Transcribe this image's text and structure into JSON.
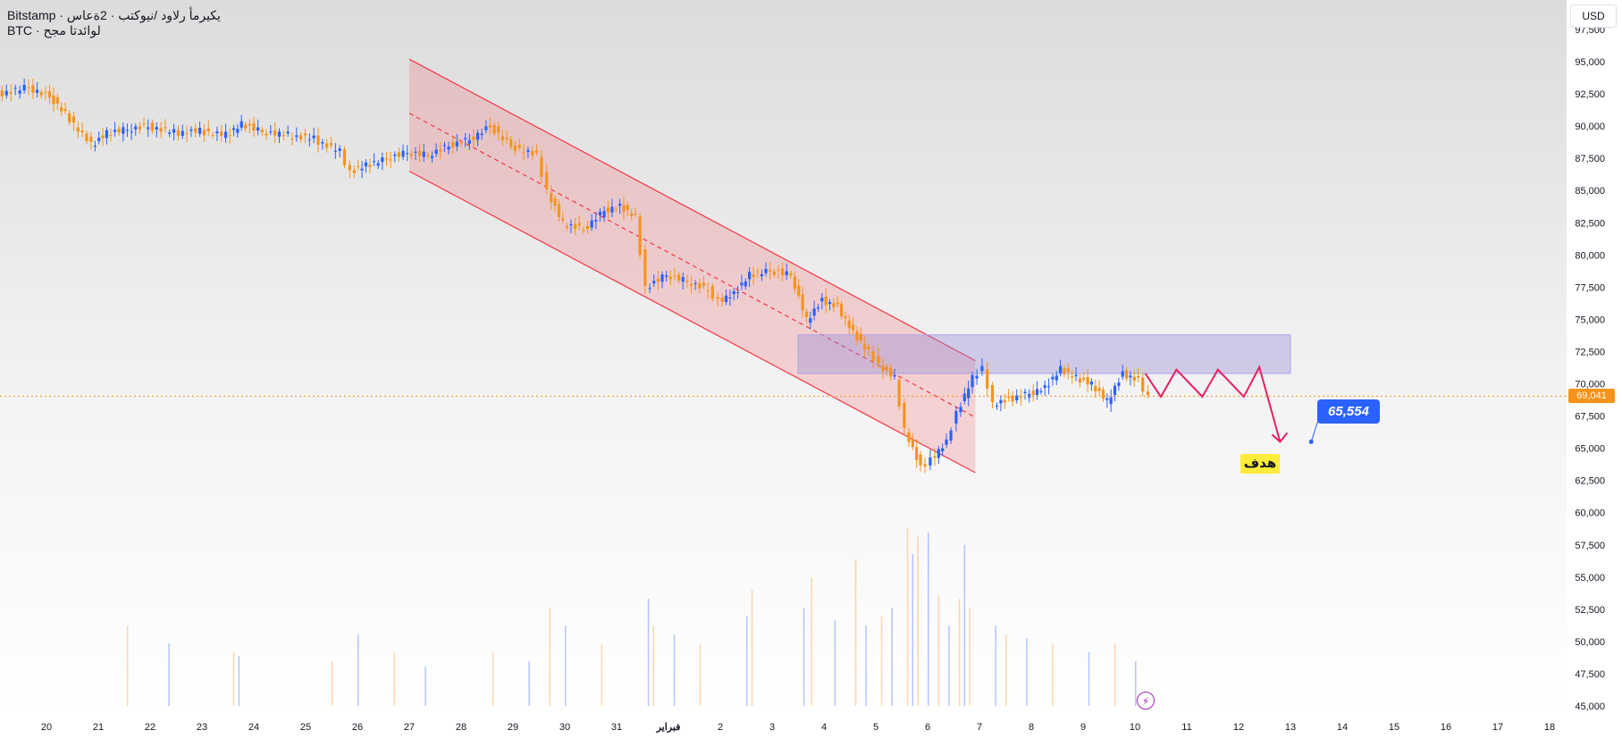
{
  "header": {
    "symbol_title": "Bitstamp · يكيرمأ رلاود /نيوكتب · 2ةعاس",
    "subtitle": "BTC · لوائدتا مجح"
  },
  "currency_button": "USD",
  "colors": {
    "up": "#2962ff",
    "down": "#f7931a",
    "channel": "#f23645",
    "zone": "#9c8fd6",
    "projection": "#e91e63",
    "price_line": "#f7931a"
  },
  "chart_data": {
    "type": "candlestick",
    "ylim": [
      44000,
      98000
    ],
    "y_ticks": [
      45000,
      47500,
      50000,
      52500,
      55000,
      57500,
      60000,
      62500,
      65000,
      67500,
      70000,
      72500,
      75000,
      77500,
      80000,
      82500,
      85000,
      87500,
      90000,
      92500,
      95000,
      97500
    ],
    "x_day_range": [
      19.1,
      18.4
    ],
    "x_ticks": [
      {
        "day": 0,
        "label": "20"
      },
      {
        "day": 1,
        "label": "21"
      },
      {
        "day": 2,
        "label": "22"
      },
      {
        "day": 3,
        "label": "23"
      },
      {
        "day": 4,
        "label": "24"
      },
      {
        "day": 5,
        "label": "25"
      },
      {
        "day": 6,
        "label": "26"
      },
      {
        "day": 7,
        "label": "27"
      },
      {
        "day": 8,
        "label": "28"
      },
      {
        "day": 9,
        "label": "29"
      },
      {
        "day": 10,
        "label": "30"
      },
      {
        "day": 11,
        "label": "31"
      },
      {
        "day": 12,
        "label": "فبراير",
        "bold": true
      },
      {
        "day": 13,
        "label": "2"
      },
      {
        "day": 14,
        "label": "3"
      },
      {
        "day": 15,
        "label": "4"
      },
      {
        "day": 16,
        "label": "5"
      },
      {
        "day": 17,
        "label": "6"
      },
      {
        "day": 18,
        "label": "7"
      },
      {
        "day": 19,
        "label": "8"
      },
      {
        "day": 20,
        "label": "9"
      },
      {
        "day": 21,
        "label": "10"
      },
      {
        "day": 22,
        "label": "11"
      },
      {
        "day": 23,
        "label": "12"
      },
      {
        "day": 24,
        "label": "13"
      },
      {
        "day": 25,
        "label": "14"
      },
      {
        "day": 26,
        "label": "15"
      },
      {
        "day": 27,
        "label": "16"
      },
      {
        "day": 28,
        "label": "17"
      },
      {
        "day": 29,
        "label": "18"
      }
    ],
    "price_path": [
      [
        -0.9,
        92500
      ],
      [
        -0.3,
        93000
      ],
      [
        0.1,
        92300
      ],
      [
        0.4,
        91000
      ],
      [
        0.9,
        88500
      ],
      [
        1.2,
        89500
      ],
      [
        1.6,
        89800
      ],
      [
        2.0,
        90000
      ],
      [
        2.5,
        89500
      ],
      [
        3.0,
        89600
      ],
      [
        3.5,
        89300
      ],
      [
        3.8,
        90200
      ],
      [
        4.2,
        89600
      ],
      [
        4.7,
        89300
      ],
      [
        5.2,
        89000
      ],
      [
        5.7,
        88000
      ],
      [
        5.9,
        86500
      ],
      [
        6.2,
        87000
      ],
      [
        6.6,
        87500
      ],
      [
        7.0,
        88000
      ],
      [
        7.4,
        87800
      ],
      [
        7.8,
        88500
      ],
      [
        8.2,
        89000
      ],
      [
        8.6,
        90000
      ],
      [
        9.0,
        88500
      ],
      [
        9.5,
        87700
      ],
      [
        9.7,
        85000
      ],
      [
        10.0,
        82500
      ],
      [
        10.4,
        82000
      ],
      [
        10.8,
        83500
      ],
      [
        11.1,
        83800
      ],
      [
        11.4,
        83000
      ],
      [
        11.6,
        77500
      ],
      [
        12.0,
        78500
      ],
      [
        12.4,
        78000
      ],
      [
        12.8,
        77300
      ],
      [
        13.0,
        76500
      ],
      [
        13.3,
        77000
      ],
      [
        13.6,
        78500
      ],
      [
        14.0,
        78800
      ],
      [
        14.4,
        78500
      ],
      [
        14.7,
        75000
      ],
      [
        15.0,
        76500
      ],
      [
        15.3,
        76000
      ],
      [
        15.6,
        74000
      ],
      [
        15.9,
        72500
      ],
      [
        16.1,
        71500
      ],
      [
        16.4,
        70500
      ],
      [
        16.6,
        66500
      ],
      [
        16.9,
        63500
      ],
      [
        17.1,
        64200
      ],
      [
        17.4,
        65500
      ],
      [
        17.6,
        67800
      ],
      [
        17.9,
        70500
      ],
      [
        18.1,
        71300
      ],
      [
        18.3,
        68500
      ],
      [
        18.6,
        68800
      ],
      [
        19.0,
        69300
      ],
      [
        19.3,
        69700
      ],
      [
        19.6,
        71200
      ],
      [
        19.9,
        70500
      ],
      [
        20.2,
        70000
      ],
      [
        20.5,
        68700
      ],
      [
        20.8,
        70800
      ],
      [
        21.1,
        70300
      ],
      [
        21.3,
        69041
      ]
    ],
    "last_price": 69041,
    "last_price_label": "69,041",
    "channel": {
      "start_day": 7.0,
      "end_day": 17.92,
      "upper": [
        95200,
        71800
      ],
      "lower": [
        86500,
        63100
      ],
      "mid": [
        91000,
        67400
      ]
    },
    "resistance_zone": {
      "start_day": 14.5,
      "end_day": 24.0,
      "top": 73800,
      "bottom": 70800
    },
    "projection_path": [
      [
        21.2,
        70800
      ],
      [
        21.5,
        69000
      ],
      [
        21.8,
        71100
      ],
      [
        22.3,
        69000
      ],
      [
        22.6,
        71100
      ],
      [
        23.1,
        69000
      ],
      [
        23.4,
        71300
      ],
      [
        23.8,
        65500
      ]
    ],
    "target": {
      "value": 65554,
      "label": "65,554",
      "anchor_day": 24.4,
      "anchor_price": 65500,
      "text": "هدف"
    },
    "volume_bars": [
      {
        "day": 1.55,
        "height": 0.45
      },
      {
        "day": 2.35,
        "height": 0.35
      },
      {
        "day": 3.6,
        "height": 0.3
      },
      {
        "day": 3.7,
        "height": 0.28
      },
      {
        "day": 5.5,
        "height": 0.25
      },
      {
        "day": 6.0,
        "height": 0.4
      },
      {
        "day": 6.7,
        "height": 0.3
      },
      {
        "day": 7.3,
        "height": 0.22
      },
      {
        "day": 8.6,
        "height": 0.3
      },
      {
        "day": 9.3,
        "height": 0.25
      },
      {
        "day": 9.7,
        "height": 0.55
      },
      {
        "day": 10.0,
        "height": 0.45
      },
      {
        "day": 10.7,
        "height": 0.35
      },
      {
        "day": 11.6,
        "height": 0.6
      },
      {
        "day": 11.7,
        "height": 0.45
      },
      {
        "day": 12.1,
        "height": 0.4
      },
      {
        "day": 12.6,
        "height": 0.35
      },
      {
        "day": 13.5,
        "height": 0.5
      },
      {
        "day": 13.6,
        "height": 0.65
      },
      {
        "day": 14.6,
        "height": 0.55
      },
      {
        "day": 14.75,
        "height": 0.72
      },
      {
        "day": 15.2,
        "height": 0.48
      },
      {
        "day": 15.6,
        "height": 0.82
      },
      {
        "day": 15.8,
        "height": 0.45
      },
      {
        "day": 16.1,
        "height": 0.5
      },
      {
        "day": 16.3,
        "height": 0.55
      },
      {
        "day": 16.6,
        "height": 1.0
      },
      {
        "day": 16.7,
        "height": 0.85
      },
      {
        "day": 16.8,
        "height": 0.95
      },
      {
        "day": 17.0,
        "height": 0.97
      },
      {
        "day": 17.2,
        "height": 0.62
      },
      {
        "day": 17.4,
        "height": 0.45
      },
      {
        "day": 17.6,
        "height": 0.6
      },
      {
        "day": 17.7,
        "height": 0.9
      },
      {
        "day": 17.8,
        "height": 0.55
      },
      {
        "day": 18.3,
        "height": 0.45
      },
      {
        "day": 18.5,
        "height": 0.4
      },
      {
        "day": 18.9,
        "height": 0.38
      },
      {
        "day": 19.4,
        "height": 0.35
      },
      {
        "day": 20.1,
        "height": 0.3
      },
      {
        "day": 20.6,
        "height": 0.35
      },
      {
        "day": 21.0,
        "height": 0.25
      }
    ]
  }
}
